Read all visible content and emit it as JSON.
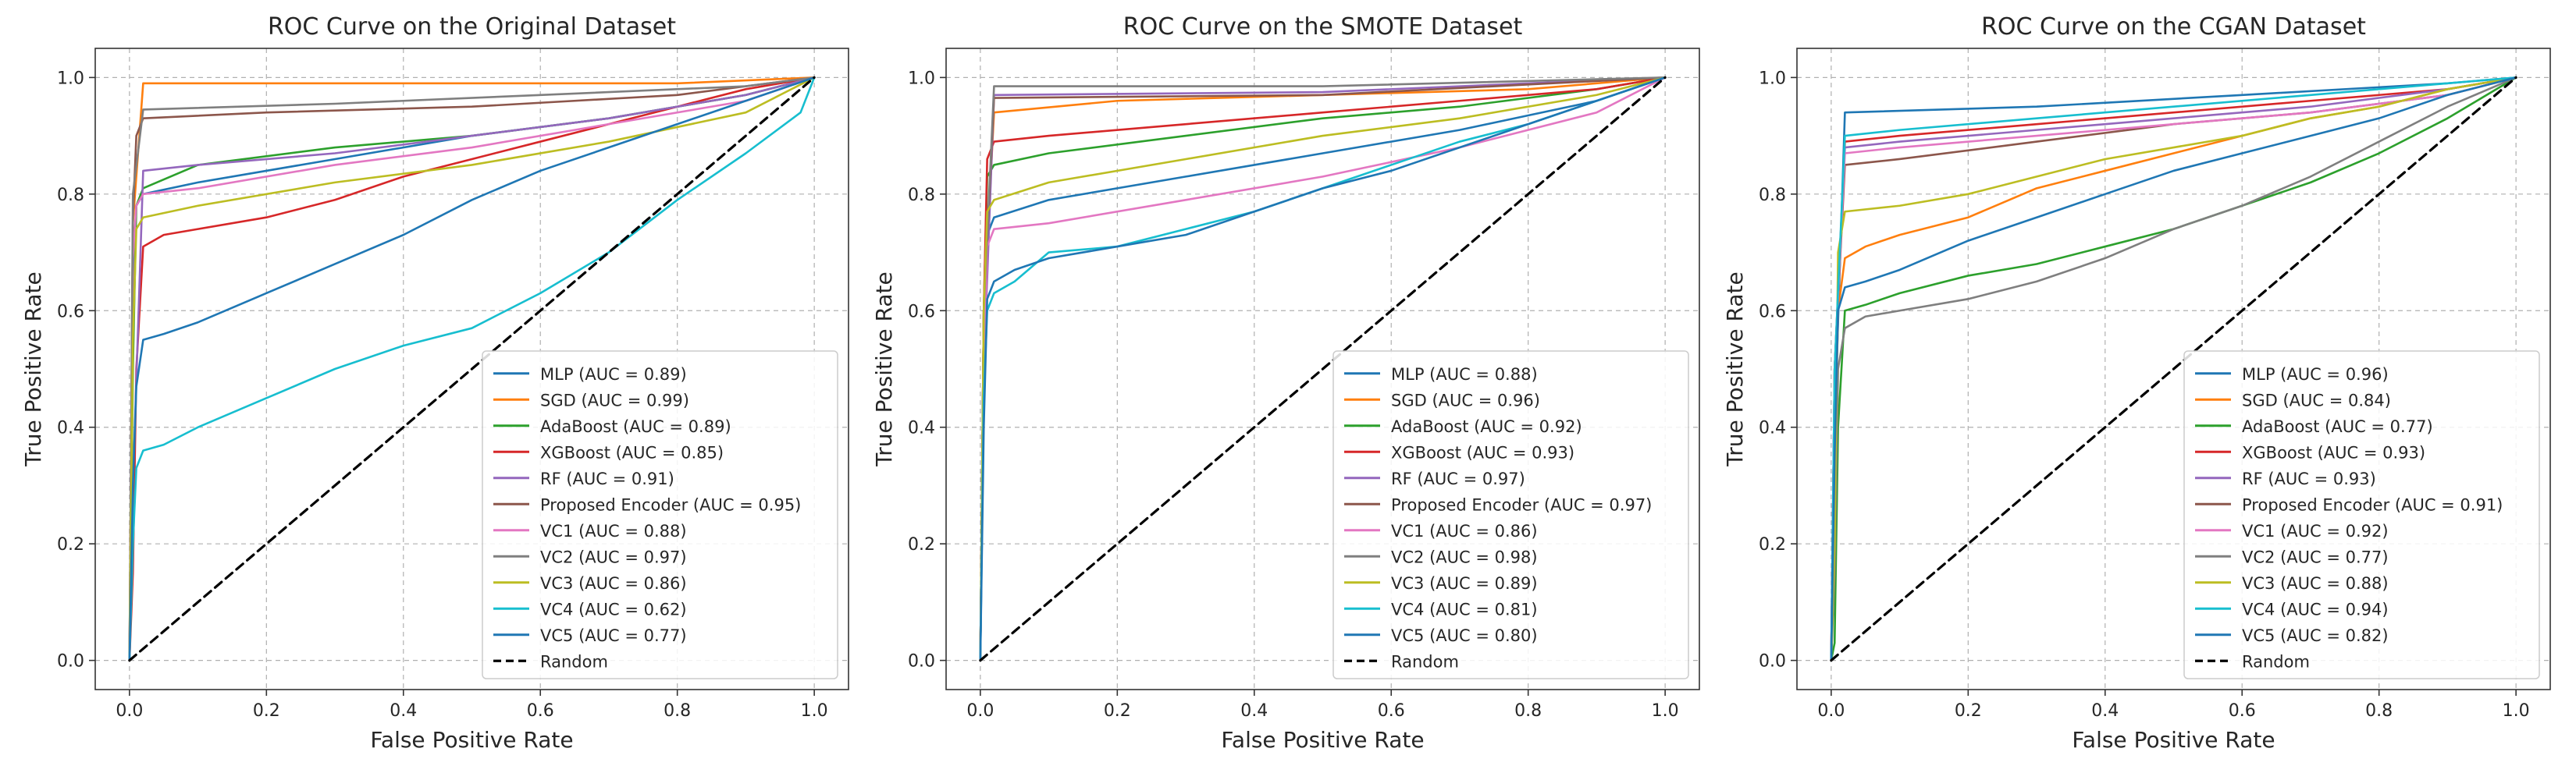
{
  "chart_data": [
    {
      "type": "line",
      "title": "ROC Curve on the Original Dataset",
      "xlabel": "False Positive Rate",
      "ylabel": "True Positive Rate",
      "xlim": [
        -0.05,
        1.05
      ],
      "ylim": [
        -0.05,
        1.05
      ],
      "xticks": [
        "0.0",
        "0.2",
        "0.4",
        "0.6",
        "0.8",
        "1.0"
      ],
      "yticks": [
        "0.0",
        "0.2",
        "0.4",
        "0.6",
        "0.8",
        "1.0"
      ],
      "grid": true,
      "legend_position": "lower-right",
      "series": [
        {
          "name": "MLP (AUC = 0.89)",
          "color": "#1f77b4",
          "x": [
            0,
            0.005,
            0.01,
            0.02,
            0.1,
            0.3,
            0.5,
            0.7,
            0.9,
            1.0
          ],
          "y": [
            0,
            0.6,
            0.78,
            0.8,
            0.82,
            0.86,
            0.9,
            0.93,
            0.97,
            1.0
          ]
        },
        {
          "name": "SGD (AUC = 0.99)",
          "color": "#ff7f0e",
          "x": [
            0,
            0.005,
            0.02,
            0.2,
            0.5,
            0.8,
            1.0
          ],
          "y": [
            0,
            0.75,
            0.99,
            0.99,
            0.99,
            0.99,
            1.0
          ]
        },
        {
          "name": "AdaBoost (AUC = 0.89)",
          "color": "#2ca02c",
          "x": [
            0,
            0.005,
            0.01,
            0.02,
            0.1,
            0.3,
            0.5,
            0.7,
            0.9,
            1.0
          ],
          "y": [
            0,
            0.5,
            0.78,
            0.81,
            0.85,
            0.88,
            0.9,
            0.93,
            0.97,
            1.0
          ]
        },
        {
          "name": "XGBoost (AUC = 0.85)",
          "color": "#d62728",
          "x": [
            0,
            0.005,
            0.01,
            0.02,
            0.05,
            0.1,
            0.2,
            0.3,
            0.4,
            0.5,
            0.6,
            0.7,
            0.8,
            0.9,
            1.0
          ],
          "y": [
            0,
            0.15,
            0.5,
            0.71,
            0.73,
            0.74,
            0.76,
            0.79,
            0.83,
            0.86,
            0.89,
            0.92,
            0.95,
            0.98,
            1.0
          ]
        },
        {
          "name": "RF (AUC = 0.91)",
          "color": "#9467bd",
          "x": [
            0,
            0.005,
            0.02,
            0.1,
            0.3,
            0.5,
            0.7,
            0.9,
            1.0
          ],
          "y": [
            0,
            0.3,
            0.84,
            0.85,
            0.87,
            0.9,
            0.93,
            0.97,
            1.0
          ]
        },
        {
          "name": "Proposed Encoder (AUC = 0.95)",
          "color": "#8c564b",
          "x": [
            0,
            0.005,
            0.01,
            0.02,
            0.2,
            0.5,
            0.8,
            1.0
          ],
          "y": [
            0,
            0.76,
            0.9,
            0.93,
            0.94,
            0.95,
            0.97,
            1.0
          ]
        },
        {
          "name": "VC1 (AUC = 0.88)",
          "color": "#e377c2",
          "x": [
            0,
            0.005,
            0.01,
            0.02,
            0.1,
            0.3,
            0.5,
            0.7,
            0.9,
            1.0
          ],
          "y": [
            0,
            0.69,
            0.78,
            0.8,
            0.81,
            0.85,
            0.88,
            0.92,
            0.96,
            1.0
          ]
        },
        {
          "name": "VC2 (AUC = 0.97)",
          "color": "#7f7f7f",
          "x": [
            0,
            0.005,
            0.02,
            0.3,
            0.6,
            0.9,
            1.0
          ],
          "y": [
            0,
            0.8,
            0.945,
            0.955,
            0.97,
            0.985,
            1.0
          ]
        },
        {
          "name": "VC3 (AUC = 0.86)",
          "color": "#bcbd22",
          "x": [
            0,
            0.005,
            0.01,
            0.02,
            0.1,
            0.3,
            0.5,
            0.7,
            0.9,
            1.0
          ],
          "y": [
            0,
            0.55,
            0.74,
            0.76,
            0.78,
            0.82,
            0.85,
            0.89,
            0.94,
            1.0
          ]
        },
        {
          "name": "VC4 (AUC = 0.62)",
          "color": "#17becf",
          "x": [
            0,
            0.005,
            0.01,
            0.02,
            0.05,
            0.1,
            0.2,
            0.3,
            0.4,
            0.5,
            0.6,
            0.7,
            0.8,
            0.9,
            0.98,
            1.0
          ],
          "y": [
            0,
            0.2,
            0.33,
            0.36,
            0.37,
            0.4,
            0.45,
            0.5,
            0.54,
            0.57,
            0.63,
            0.7,
            0.79,
            0.87,
            0.94,
            1.0
          ]
        },
        {
          "name": "VC5 (AUC = 0.77)",
          "color": "#1f77b4",
          "x": [
            0,
            0.005,
            0.01,
            0.02,
            0.05,
            0.1,
            0.2,
            0.3,
            0.4,
            0.5,
            0.6,
            0.7,
            0.8,
            0.9,
            1.0
          ],
          "y": [
            0,
            0.3,
            0.47,
            0.55,
            0.56,
            0.58,
            0.63,
            0.68,
            0.73,
            0.79,
            0.84,
            0.88,
            0.92,
            0.96,
            1.0
          ]
        },
        {
          "name": "Random",
          "color": "#000000",
          "dashed": true,
          "x": [
            0,
            1
          ],
          "y": [
            0,
            1
          ]
        }
      ]
    },
    {
      "type": "line",
      "title": "ROC Curve on the SMOTE Dataset",
      "xlabel": "False Positive Rate",
      "ylabel": "True Positive Rate",
      "xlim": [
        -0.05,
        1.05
      ],
      "ylim": [
        -0.05,
        1.05
      ],
      "xticks": [
        "0.0",
        "0.2",
        "0.4",
        "0.6",
        "0.8",
        "1.0"
      ],
      "yticks": [
        "0.0",
        "0.2",
        "0.4",
        "0.6",
        "0.8",
        "1.0"
      ],
      "grid": true,
      "legend_position": "lower-right",
      "series": [
        {
          "name": "MLP (AUC = 0.88)",
          "color": "#1f77b4",
          "x": [
            0,
            0.005,
            0.01,
            0.02,
            0.1,
            0.3,
            0.5,
            0.7,
            0.9,
            1.0
          ],
          "y": [
            0,
            0.55,
            0.73,
            0.76,
            0.79,
            0.83,
            0.87,
            0.91,
            0.96,
            1.0
          ]
        },
        {
          "name": "SGD (AUC = 0.96)",
          "color": "#ff7f0e",
          "x": [
            0,
            0.005,
            0.02,
            0.2,
            0.5,
            0.8,
            1.0
          ],
          "y": [
            0,
            0.6,
            0.94,
            0.96,
            0.97,
            0.98,
            1.0
          ]
        },
        {
          "name": "AdaBoost (AUC = 0.92)",
          "color": "#2ca02c",
          "x": [
            0,
            0.005,
            0.01,
            0.02,
            0.1,
            0.3,
            0.5,
            0.7,
            0.9,
            1.0
          ],
          "y": [
            0,
            0.6,
            0.83,
            0.85,
            0.87,
            0.9,
            0.93,
            0.95,
            0.98,
            1.0
          ]
        },
        {
          "name": "XGBoost (AUC = 0.93)",
          "color": "#d62728",
          "x": [
            0,
            0.005,
            0.01,
            0.02,
            0.1,
            0.3,
            0.5,
            0.7,
            0.9,
            1.0
          ],
          "y": [
            0,
            0.6,
            0.86,
            0.89,
            0.9,
            0.92,
            0.94,
            0.96,
            0.98,
            1.0
          ]
        },
        {
          "name": "RF (AUC = 0.97)",
          "color": "#9467bd",
          "x": [
            0,
            0.005,
            0.02,
            0.5,
            1.0
          ],
          "y": [
            0,
            0.5,
            0.97,
            0.975,
            1.0
          ]
        },
        {
          "name": "Proposed Encoder (AUC = 0.97)",
          "color": "#8c564b",
          "x": [
            0,
            0.005,
            0.02,
            0.5,
            1.0
          ],
          "y": [
            0,
            0.6,
            0.965,
            0.97,
            1.0
          ]
        },
        {
          "name": "VC1 (AUC = 0.86)",
          "color": "#e377c2",
          "x": [
            0,
            0.005,
            0.01,
            0.02,
            0.1,
            0.3,
            0.5,
            0.7,
            0.9,
            1.0
          ],
          "y": [
            0,
            0.5,
            0.71,
            0.74,
            0.75,
            0.79,
            0.83,
            0.88,
            0.94,
            1.0
          ]
        },
        {
          "name": "VC2 (AUC = 0.98)",
          "color": "#7f7f7f",
          "x": [
            0,
            0.005,
            0.02,
            0.5,
            1.0
          ],
          "y": [
            0,
            0.6,
            0.985,
            0.985,
            1.0
          ]
        },
        {
          "name": "VC3 (AUC = 0.89)",
          "color": "#bcbd22",
          "x": [
            0,
            0.005,
            0.01,
            0.02,
            0.1,
            0.3,
            0.5,
            0.7,
            0.9,
            1.0
          ],
          "y": [
            0,
            0.6,
            0.77,
            0.79,
            0.82,
            0.86,
            0.9,
            0.93,
            0.97,
            1.0
          ]
        },
        {
          "name": "VC4 (AUC = 0.81)",
          "color": "#17becf",
          "x": [
            0,
            0.005,
            0.01,
            0.02,
            0.05,
            0.1,
            0.2,
            0.3,
            0.4,
            0.5,
            0.6,
            0.7,
            0.8,
            0.9,
            1.0
          ],
          "y": [
            0,
            0.45,
            0.6,
            0.63,
            0.65,
            0.7,
            0.71,
            0.74,
            0.77,
            0.81,
            0.85,
            0.89,
            0.92,
            0.96,
            1.0
          ]
        },
        {
          "name": "VC5 (AUC = 0.80)",
          "color": "#1f77b4",
          "x": [
            0,
            0.005,
            0.01,
            0.02,
            0.05,
            0.1,
            0.2,
            0.3,
            0.4,
            0.5,
            0.6,
            0.7,
            0.8,
            0.9,
            1.0
          ],
          "y": [
            0,
            0.4,
            0.62,
            0.65,
            0.67,
            0.69,
            0.71,
            0.73,
            0.77,
            0.81,
            0.84,
            0.88,
            0.92,
            0.96,
            1.0
          ]
        },
        {
          "name": "Random",
          "color": "#000000",
          "dashed": true,
          "x": [
            0,
            1
          ],
          "y": [
            0,
            1
          ]
        }
      ]
    },
    {
      "type": "line",
      "title": "ROC Curve on the CGAN Dataset",
      "xlabel": "False Positive Rate",
      "ylabel": "True Positive Rate",
      "xlim": [
        -0.05,
        1.05
      ],
      "ylim": [
        -0.05,
        1.05
      ],
      "xticks": [
        "0.0",
        "0.2",
        "0.4",
        "0.6",
        "0.8",
        "1.0"
      ],
      "yticks": [
        "0.0",
        "0.2",
        "0.4",
        "0.6",
        "0.8",
        "1.0"
      ],
      "grid": true,
      "legend_position": "lower-right",
      "series": [
        {
          "name": "MLP (AUC = 0.96)",
          "color": "#1f77b4",
          "x": [
            0,
            0.005,
            0.02,
            0.3,
            0.6,
            0.9,
            1.0
          ],
          "y": [
            0,
            0.4,
            0.94,
            0.95,
            0.97,
            0.99,
            1.0
          ]
        },
        {
          "name": "SGD (AUC = 0.84)",
          "color": "#ff7f0e",
          "x": [
            0,
            0.005,
            0.01,
            0.02,
            0.05,
            0.1,
            0.2,
            0.3,
            0.4,
            0.5,
            0.6,
            0.7,
            0.8,
            0.9,
            1.0
          ],
          "y": [
            0,
            0.3,
            0.6,
            0.69,
            0.71,
            0.73,
            0.76,
            0.81,
            0.84,
            0.87,
            0.9,
            0.93,
            0.95,
            0.98,
            1.0
          ]
        },
        {
          "name": "AdaBoost (AUC = 0.77)",
          "color": "#2ca02c",
          "x": [
            0,
            0.005,
            0.01,
            0.02,
            0.05,
            0.1,
            0.2,
            0.3,
            0.4,
            0.5,
            0.6,
            0.7,
            0.8,
            0.9,
            1.0
          ],
          "y": [
            0,
            0.03,
            0.4,
            0.6,
            0.61,
            0.63,
            0.66,
            0.68,
            0.71,
            0.74,
            0.78,
            0.82,
            0.87,
            0.93,
            1.0
          ]
        },
        {
          "name": "XGBoost (AUC = 0.93)",
          "color": "#d62728",
          "x": [
            0,
            0.005,
            0.02,
            0.1,
            0.3,
            0.5,
            0.7,
            0.9,
            1.0
          ],
          "y": [
            0,
            0.5,
            0.89,
            0.9,
            0.92,
            0.94,
            0.96,
            0.98,
            1.0
          ]
        },
        {
          "name": "RF (AUC = 0.93)",
          "color": "#9467bd",
          "x": [
            0,
            0.005,
            0.02,
            0.1,
            0.3,
            0.5,
            0.7,
            0.9,
            1.0
          ],
          "y": [
            0,
            0.5,
            0.88,
            0.89,
            0.91,
            0.93,
            0.95,
            0.98,
            1.0
          ]
        },
        {
          "name": "Proposed Encoder (AUC = 0.91)",
          "color": "#8c564b",
          "x": [
            0,
            0.005,
            0.02,
            0.1,
            0.3,
            0.5,
            0.7,
            0.9,
            1.0
          ],
          "y": [
            0,
            0.5,
            0.85,
            0.86,
            0.89,
            0.92,
            0.94,
            0.97,
            1.0
          ]
        },
        {
          "name": "VC1 (AUC = 0.92)",
          "color": "#e377c2",
          "x": [
            0,
            0.005,
            0.02,
            0.1,
            0.3,
            0.5,
            0.7,
            0.9,
            1.0
          ],
          "y": [
            0,
            0.5,
            0.87,
            0.88,
            0.9,
            0.92,
            0.94,
            0.97,
            1.0
          ]
        },
        {
          "name": "VC2 (AUC = 0.77)",
          "color": "#7f7f7f",
          "x": [
            0,
            0.005,
            0.01,
            0.02,
            0.05,
            0.1,
            0.2,
            0.3,
            0.4,
            0.5,
            0.6,
            0.7,
            0.8,
            0.9,
            1.0
          ],
          "y": [
            0,
            0.15,
            0.5,
            0.57,
            0.59,
            0.6,
            0.62,
            0.65,
            0.69,
            0.74,
            0.78,
            0.83,
            0.89,
            0.95,
            1.0
          ]
        },
        {
          "name": "VC3 (AUC = 0.88)",
          "color": "#bcbd22",
          "x": [
            0,
            0.005,
            0.01,
            0.02,
            0.1,
            0.2,
            0.3,
            0.4,
            0.5,
            0.6,
            0.7,
            0.8,
            0.9,
            1.0
          ],
          "y": [
            0,
            0.2,
            0.7,
            0.77,
            0.78,
            0.8,
            0.83,
            0.86,
            0.88,
            0.9,
            0.93,
            0.95,
            0.98,
            1.0
          ]
        },
        {
          "name": "VC4 (AUC = 0.94)",
          "color": "#17becf",
          "x": [
            0,
            0.005,
            0.02,
            0.1,
            0.3,
            0.5,
            0.7,
            0.9,
            1.0
          ],
          "y": [
            0,
            0.5,
            0.9,
            0.91,
            0.93,
            0.95,
            0.97,
            0.99,
            1.0
          ]
        },
        {
          "name": "VC5 (AUC = 0.82)",
          "color": "#1f77b4",
          "x": [
            0,
            0.005,
            0.01,
            0.02,
            0.05,
            0.1,
            0.2,
            0.3,
            0.4,
            0.5,
            0.6,
            0.7,
            0.8,
            0.9,
            1.0
          ],
          "y": [
            0,
            0.35,
            0.6,
            0.64,
            0.65,
            0.67,
            0.72,
            0.76,
            0.8,
            0.84,
            0.87,
            0.9,
            0.93,
            0.97,
            1.0
          ]
        },
        {
          "name": "Random",
          "color": "#000000",
          "dashed": true,
          "x": [
            0,
            1
          ],
          "y": [
            0,
            1
          ]
        }
      ]
    }
  ]
}
